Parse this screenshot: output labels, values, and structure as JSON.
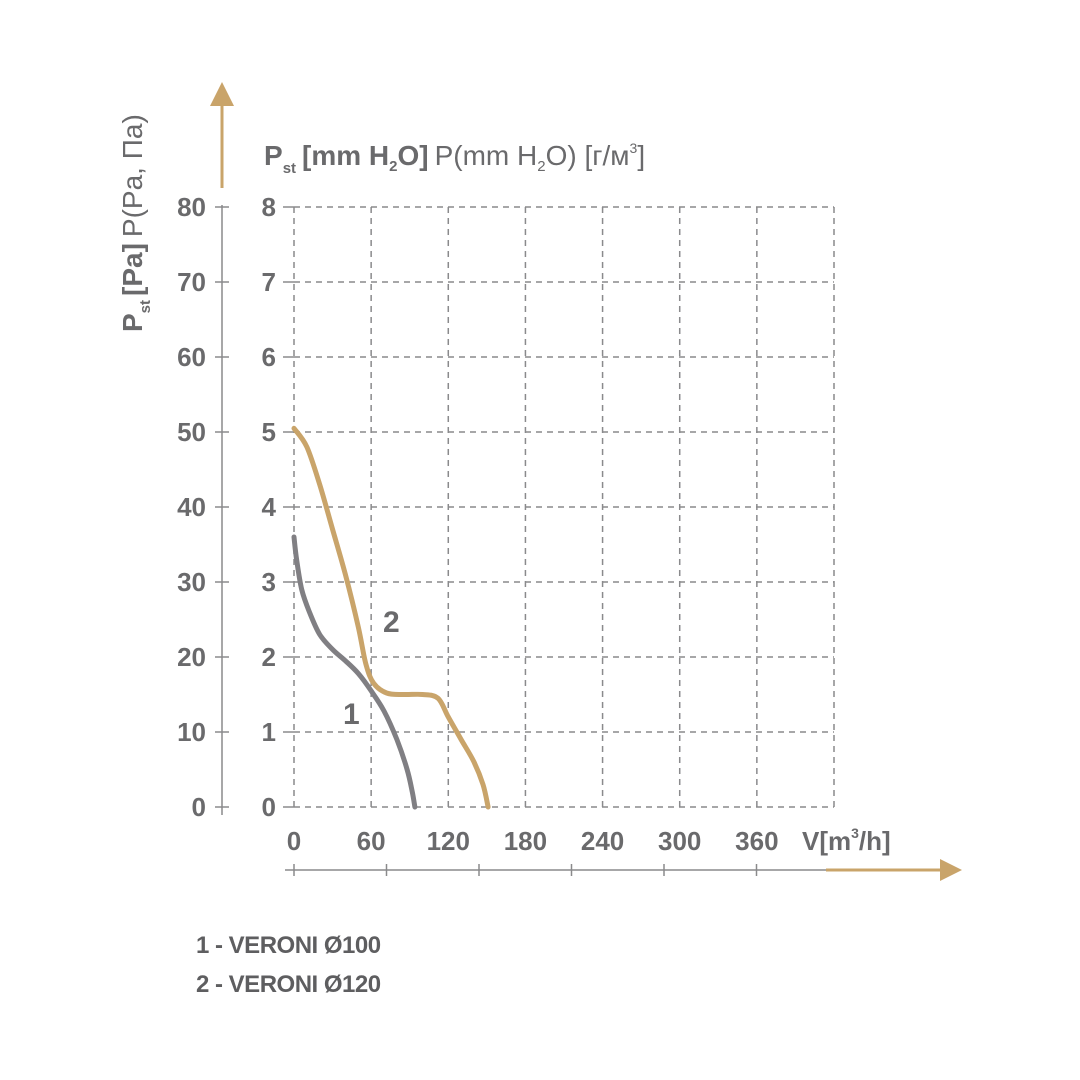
{
  "colors": {
    "axis_arrow": "#c9a46a",
    "grid": "#8a8a8c",
    "text": "#6a6a6c",
    "series_1": "#807f83",
    "series_2": "#c9a46a"
  },
  "labels": {
    "y_outer_main": "P",
    "y_outer_sub": "st",
    "y_outer_unit": "[Pa]",
    "y_outer_extra": "P(Pa, Па)",
    "y_inner_main": "P",
    "y_inner_sub": "st",
    "y_inner_unit_pre": "[mm H",
    "y_inner_unit_sub": "2",
    "y_inner_unit_post": "O]",
    "y_inner_extra_pre": "P(mm H",
    "y_inner_extra_sub": "2",
    "y_inner_extra_mid": "O) [г/м",
    "y_inner_extra_sup": "3",
    "y_inner_extra_post": "]",
    "x_label_pre": "V[m",
    "x_label_sup": "3",
    "x_label_post": "/h]"
  },
  "legend": [
    "1 - VERONI Ø100",
    "2 - VERONI Ø120"
  ],
  "chart_data": {
    "type": "line",
    "x_axis": {
      "label": "V[m3/h]",
      "ticks": [
        "0",
        "60",
        "120",
        "180",
        "240",
        "300",
        "360"
      ],
      "range": [
        0,
        420
      ]
    },
    "y_axis_pa": {
      "label": "Pst [Pa] P(Pa, Па)",
      "ticks": [
        "0",
        "10",
        "20",
        "30",
        "40",
        "50",
        "60",
        "70",
        "80"
      ],
      "range": [
        0,
        80
      ]
    },
    "y_axis_mmh2o": {
      "label": "Pst [mm H2O] P(mm H2O) [г/м3]",
      "ticks": [
        "0",
        "1",
        "2",
        "3",
        "4",
        "5",
        "6",
        "7",
        "8"
      ],
      "range": [
        0,
        8
      ]
    },
    "grid": true,
    "series": [
      {
        "name": "1",
        "color": "#807f83",
        "points": [
          [
            0,
            36
          ],
          [
            2,
            33
          ],
          [
            6,
            29
          ],
          [
            12,
            26
          ],
          [
            20,
            23
          ],
          [
            30,
            21
          ],
          [
            40,
            19.5
          ],
          [
            50,
            17.8
          ],
          [
            60,
            15.5
          ],
          [
            70,
            12.8
          ],
          [
            80,
            9
          ],
          [
            88,
            5
          ],
          [
            92,
            2
          ],
          [
            94,
            0
          ]
        ]
      },
      {
        "name": "2",
        "color": "#c9a46a",
        "points": [
          [
            0,
            50.5
          ],
          [
            10,
            48
          ],
          [
            20,
            43
          ],
          [
            30,
            37
          ],
          [
            40,
            31
          ],
          [
            50,
            24
          ],
          [
            56,
            19
          ],
          [
            62,
            16.5
          ],
          [
            72,
            15.2
          ],
          [
            85,
            15
          ],
          [
            100,
            15
          ],
          [
            112,
            14.5
          ],
          [
            120,
            12
          ],
          [
            130,
            9
          ],
          [
            140,
            6
          ],
          [
            147,
            3
          ],
          [
            151,
            0
          ]
        ]
      }
    ],
    "annotations": [
      "1",
      "2"
    ]
  }
}
